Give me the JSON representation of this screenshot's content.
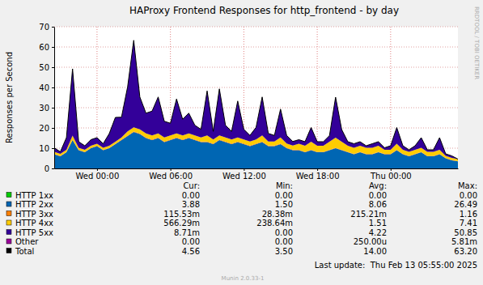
{
  "chart_data": {
    "type": "area",
    "title": "HAProxy Frontend Responses for http_frontend - by day",
    "y_label": "Responses per Second",
    "watermark": "RRDTOOL / TOBI OETIKER",
    "last_update": "Last update:  Thu Feb 13 05:55:00 2025",
    "footer": "Munin 2.0.33-1",
    "stats_header": [
      "Cur:",
      "Min:",
      "Avg:",
      "Max:"
    ],
    "categories": [
      null,
      null,
      null,
      null,
      null,
      null,
      null,
      "Wed 00:00",
      null,
      null,
      null,
      null,
      null,
      null,
      null,
      null,
      null,
      null,
      null,
      "Wed 06:00",
      null,
      null,
      null,
      null,
      null,
      null,
      null,
      null,
      null,
      null,
      null,
      "Wed 12:00",
      null,
      null,
      null,
      null,
      null,
      null,
      null,
      null,
      null,
      null,
      null,
      "Wed 18:00",
      null,
      null,
      null,
      null,
      null,
      null,
      null,
      null,
      null,
      null,
      null,
      "Thu 00:00",
      null,
      null,
      null,
      null,
      null,
      null,
      null,
      null,
      null,
      null,
      null
    ],
    "ylim": [
      0,
      70
    ],
    "yticks": [
      0,
      10,
      20,
      30,
      40,
      50,
      60,
      70
    ],
    "grid": true,
    "stacked": true,
    "legend": "bottom",
    "series": [
      {
        "name": "HTTP 1xx",
        "color": "#00cc00",
        "type": "area",
        "stats": [
          "0.00",
          "0.00",
          "0.00",
          "0.00"
        ],
        "values": [
          0,
          0,
          0,
          0,
          0,
          0,
          0,
          0,
          0,
          0,
          0,
          0,
          0,
          0,
          0,
          0,
          0,
          0,
          0,
          0,
          0,
          0,
          0,
          0,
          0,
          0,
          0,
          0,
          0,
          0,
          0,
          0,
          0,
          0,
          0,
          0,
          0,
          0,
          0,
          0,
          0,
          0,
          0,
          0,
          0,
          0,
          0,
          0,
          0,
          0,
          0,
          0,
          0,
          0,
          0,
          0,
          0,
          0,
          0,
          0,
          0,
          0,
          0,
          0,
          0,
          0,
          0
        ]
      },
      {
        "name": "HTTP 2xx",
        "color": "#0066b3",
        "type": "area",
        "stats": [
          "3.88",
          "1.50",
          "8.06",
          "26.49"
        ],
        "values": [
          7,
          6,
          8,
          14,
          9,
          8,
          10,
          11,
          9,
          10,
          12,
          14,
          16,
          18,
          17,
          15,
          14,
          15,
          13,
          14,
          15,
          14,
          15,
          14,
          13,
          13,
          12,
          14,
          13,
          12,
          13,
          12,
          11,
          12,
          13,
          11,
          11,
          12,
          10,
          9,
          9,
          8,
          9,
          8,
          8,
          9,
          10,
          9,
          8,
          7,
          8,
          7,
          7,
          8,
          7,
          7,
          9,
          7,
          6,
          7,
          8,
          6,
          6,
          7,
          5,
          4,
          3.5
        ]
      },
      {
        "name": "HTTP 3xx",
        "color": "#ff8000",
        "type": "area",
        "stats": [
          "115.53m",
          "28.38m",
          "215.21m",
          "1.16"
        ],
        "values": [
          0.2,
          0.2,
          0.2,
          0.2,
          0.2,
          0.2,
          0.2,
          0.2,
          0.2,
          0.2,
          0.2,
          0.3,
          0.3,
          0.3,
          0.3,
          0.3,
          0.3,
          0.3,
          0.3,
          0.3,
          0.3,
          0.3,
          0.3,
          0.3,
          0.3,
          0.3,
          0.3,
          0.3,
          0.3,
          0.3,
          0.3,
          0.3,
          0.3,
          0.3,
          0.3,
          0.3,
          0.3,
          0.3,
          0.3,
          0.3,
          0.2,
          0.2,
          0.2,
          0.2,
          0.2,
          0.2,
          0.2,
          0.2,
          0.2,
          0.2,
          0.2,
          0.2,
          0.2,
          0.2,
          0.2,
          0.2,
          0.2,
          0.2,
          0.2,
          0.2,
          0.2,
          0.2,
          0.2,
          0.2,
          0.2,
          0.2,
          0.1
        ]
      },
      {
        "name": "HTTP 4xx",
        "color": "#ffcc00",
        "type": "area",
        "stats": [
          "566.29m",
          "238.64m",
          "1.51",
          "7.41"
        ],
        "values": [
          1,
          1,
          1,
          2,
          1,
          1,
          1,
          1,
          1,
          1,
          1,
          1,
          2,
          2,
          2,
          2,
          2,
          2,
          2,
          2,
          2,
          2,
          2,
          2,
          2,
          3,
          2,
          2,
          2,
          2,
          2,
          2,
          2,
          2,
          3,
          2,
          2,
          3,
          2,
          2,
          3,
          3,
          4,
          3,
          3,
          4,
          5,
          4,
          3,
          3,
          3,
          3,
          3,
          3,
          2,
          2,
          3,
          2,
          2,
          2,
          2,
          2,
          2,
          2,
          1,
          1,
          1
        ]
      },
      {
        "name": "HTTP 5xx",
        "color": "#330099",
        "type": "area",
        "stats": [
          "8.71m",
          "0.00",
          "4.22",
          "50.85"
        ],
        "values": [
          2,
          1,
          6,
          33,
          3,
          2,
          3,
          3,
          2,
          6,
          12,
          10,
          22,
          43,
          16,
          10,
          12,
          18,
          8,
          6,
          17,
          8,
          10,
          5,
          4,
          22,
          4,
          23,
          6,
          4,
          18,
          5,
          3,
          6,
          19,
          4,
          3,
          14,
          4,
          2,
          2,
          2,
          7,
          2,
          2,
          3,
          20,
          6,
          2,
          2,
          2,
          1,
          2,
          2,
          1,
          2,
          8,
          2,
          1,
          2,
          5,
          1,
          1,
          6,
          1,
          1,
          0
        ]
      },
      {
        "name": "Other",
        "color": "#990099",
        "type": "area",
        "stats": [
          "0.00",
          "0.00",
          "250.00u",
          "5.81m"
        ],
        "values": [
          0,
          0,
          0,
          0,
          0,
          0,
          0,
          0,
          0,
          0,
          0,
          0,
          0,
          0,
          0,
          0,
          0,
          0,
          0,
          0,
          0,
          0,
          0,
          0,
          0,
          0,
          0,
          0,
          0,
          0,
          0,
          0,
          0,
          0,
          0,
          0,
          0,
          0,
          0,
          0,
          0,
          0,
          0,
          0,
          0,
          0,
          0,
          0,
          0,
          0,
          0,
          0,
          0,
          0,
          0,
          0,
          0,
          0,
          0,
          0,
          0,
          0,
          0,
          0,
          0,
          0,
          0
        ]
      },
      {
        "name": "Total",
        "color": "#000000",
        "type": "line",
        "stats": [
          "4.56",
          "3.50",
          "14.00",
          "63.20"
        ],
        "values": [
          10.2,
          8.2,
          15.2,
          49.2,
          13.2,
          11.2,
          14.2,
          15.2,
          12.2,
          17.2,
          25.2,
          25.3,
          40.3,
          63.3,
          35.3,
          27.3,
          28.3,
          35.3,
          23.3,
          22.3,
          34.3,
          24.3,
          27.3,
          21.3,
          19.3,
          38.3,
          18.3,
          39.3,
          21.3,
          18.3,
          33.3,
          19.3,
          16.3,
          20.3,
          35.3,
          17.3,
          16.3,
          29.3,
          16.3,
          13.3,
          14.2,
          13.2,
          20.2,
          13.2,
          13.2,
          16.2,
          35.2,
          19.2,
          13.2,
          12.2,
          13.2,
          11.2,
          12.2,
          13.2,
          10.2,
          11.2,
          20.2,
          11.2,
          9.2,
          11.2,
          15.2,
          9.2,
          9.2,
          15.2,
          7.2,
          6.2,
          4.6
        ]
      }
    ]
  }
}
